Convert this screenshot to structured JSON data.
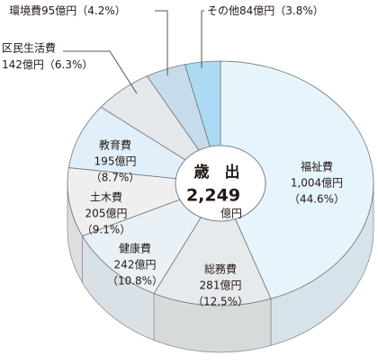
{
  "chart_data": {
    "type": "pie",
    "categories": [
      "福祉費",
      "総務費",
      "健康費",
      "土木費",
      "教育費",
      "区民生活費",
      "環境費",
      "その他"
    ],
    "values": [
      1004,
      281,
      242,
      205,
      195,
      142,
      95,
      84
    ],
    "value_labels": [
      "1,004億円",
      "281億円",
      "242億円",
      "205億円",
      "195億円",
      "142億円",
      "95億円",
      "84億円"
    ],
    "percentages": [
      44.6,
      12.5,
      10.8,
      9.1,
      8.7,
      6.3,
      4.2,
      3.8
    ],
    "percent_labels": [
      "（44.6%）",
      "（12.5%）",
      "（10.8%）",
      "（9.1%）",
      "（8.7%）",
      "（6.3%）",
      "（4.2%）",
      "（3.8%）"
    ],
    "colors": [
      "#e6f4fc",
      "#e7eaec",
      "#e9f1f7",
      "#efefef",
      "#e0effa",
      "#e4e8ea",
      "#c6dceb",
      "#acdaf2"
    ],
    "center_title": "歳　出",
    "total": {
      "value": 2249,
      "label": "2,249"
    },
    "total_unit": "億円"
  }
}
